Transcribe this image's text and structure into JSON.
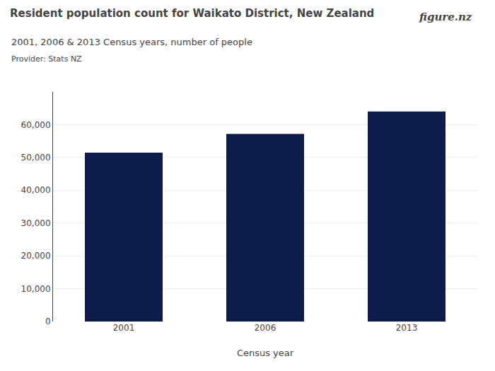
{
  "chart_data": {
    "type": "bar",
    "title": "Resident population count for Waikato District, New Zealand",
    "subtitle": "2001, 2006 & 2013 Census years, number of people",
    "annotations": [
      "Provider: Stats NZ",
      "figure.nz"
    ],
    "categories": [
      "2001",
      "2006",
      "2013"
    ],
    "values": [
      51500,
      57200,
      64000
    ],
    "color": "#0d1b4b",
    "xlabel": "Census year",
    "ylim": [
      0,
      70000
    ],
    "yticks": [
      0,
      {
        "value": 10000,
        "label": "10,000"
      },
      {
        "value": 20000,
        "label": "20,000"
      },
      {
        "value": 30000,
        "label": "30,000"
      },
      {
        "value": 40000,
        "label": "40,000"
      },
      {
        "value": 50000,
        "label": "50,000"
      },
      {
        "value": 60000,
        "label": "60,000"
      }
    ],
    "grid": true
  }
}
